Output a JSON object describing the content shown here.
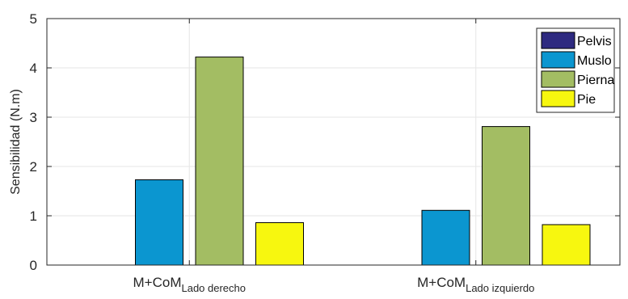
{
  "chart_data": {
    "type": "bar",
    "categories": [
      {
        "main": "M+CoM",
        "sub": "Lado derecho"
      },
      {
        "main": "M+CoM",
        "sub": "Lado izquierdo"
      }
    ],
    "series": [
      {
        "name": "Pelvis",
        "color": "#2e2a80",
        "values": [
          0,
          0
        ]
      },
      {
        "name": "Muslo",
        "color": "#0b96d0",
        "values": [
          1.73,
          1.11
        ]
      },
      {
        "name": "Pierna",
        "color": "#a3bd63",
        "values": [
          4.22,
          2.81
        ]
      },
      {
        "name": "Pie",
        "color": "#f7f70f",
        "values": [
          0.86,
          0.82
        ]
      }
    ],
    "xlabel": "",
    "ylabel": "Sensibilidad (N.m)",
    "ylim": [
      0,
      5
    ],
    "yticks": [
      "0",
      "1",
      "2",
      "3",
      "4",
      "5"
    ],
    "grid": true,
    "legend_position": "top-right"
  }
}
